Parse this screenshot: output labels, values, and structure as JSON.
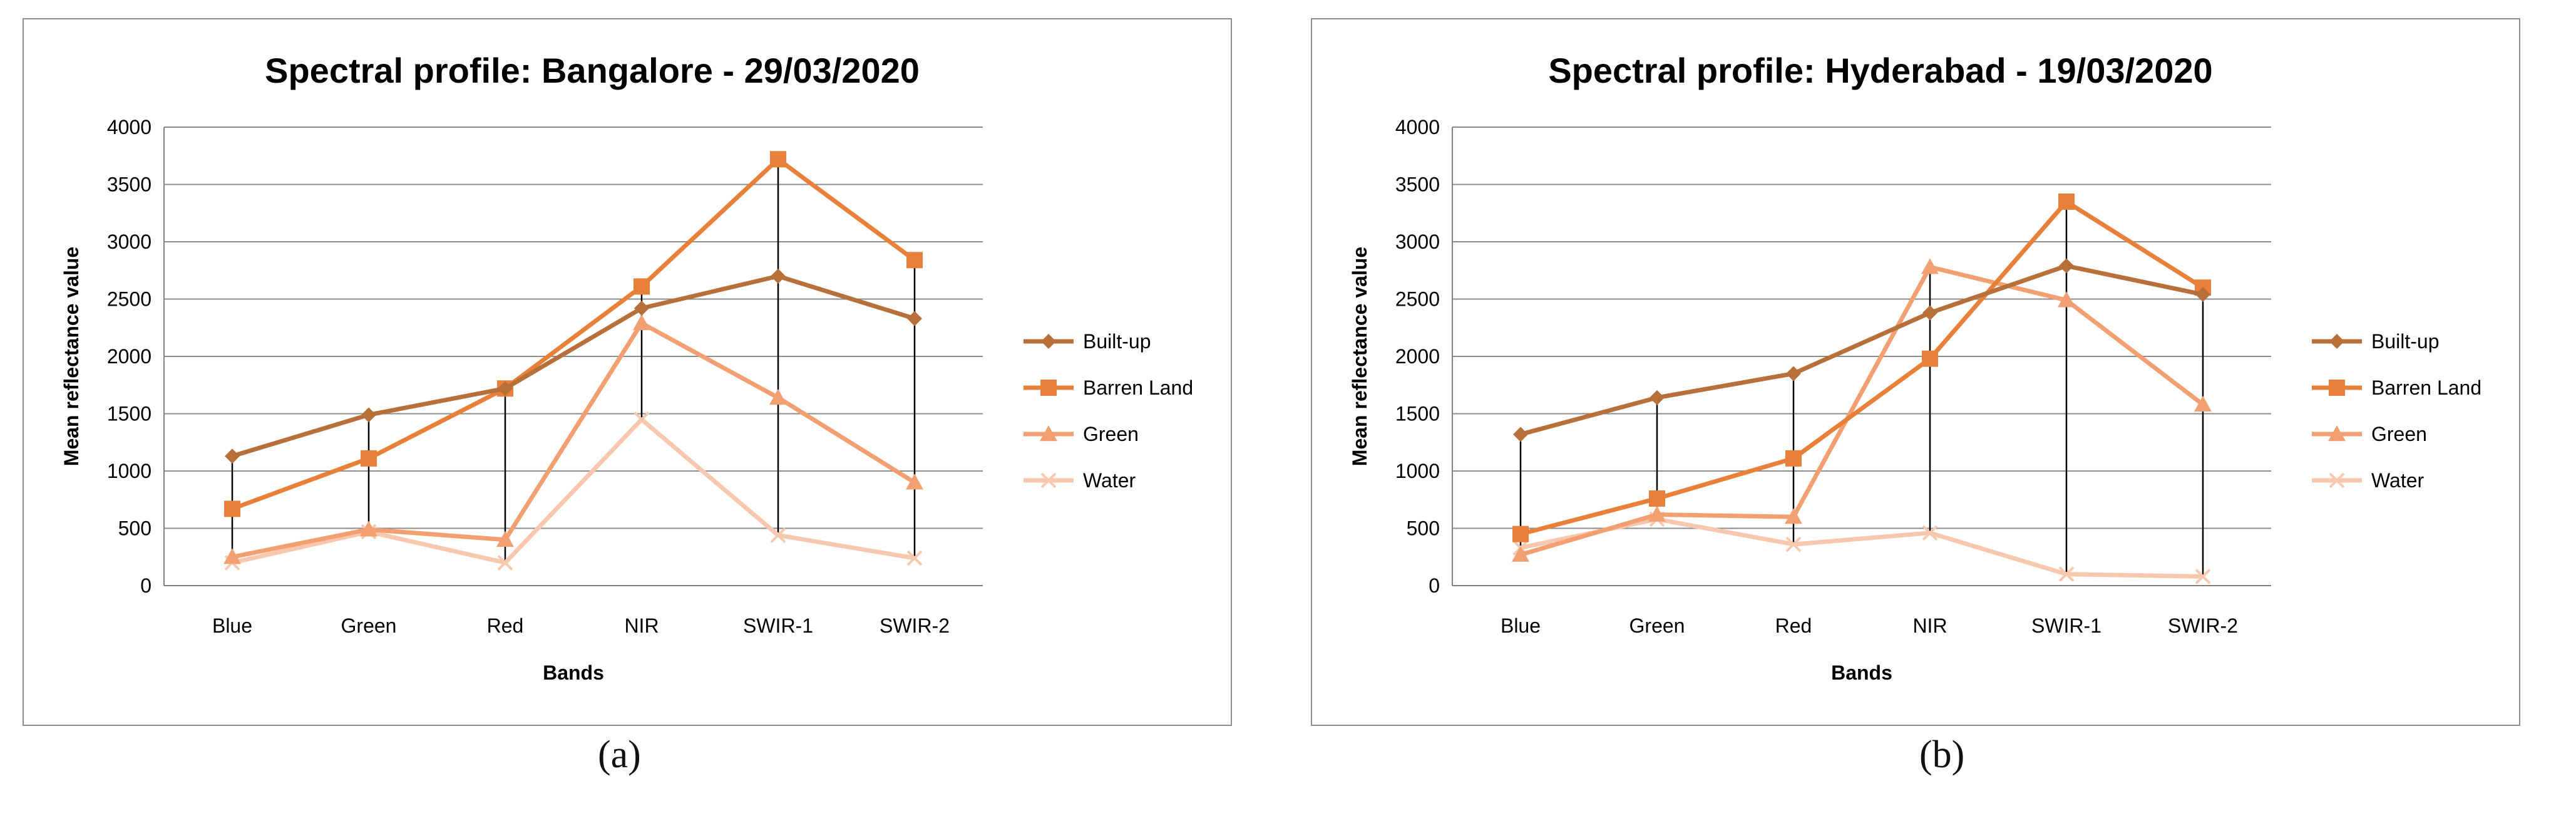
{
  "chart_data": [
    {
      "id": "a",
      "type": "line",
      "title": "Spectral profile: Bangalore - 29/03/2020",
      "xlabel": "Bands",
      "ylabel": "Mean reflectance value",
      "categories": [
        "Blue",
        "Green",
        "Red",
        "NIR",
        "SWIR-1",
        "SWIR-2"
      ],
      "ylim": [
        0,
        4000
      ],
      "yticks": [
        "0",
        "500",
        "1000",
        "1500",
        "2000",
        "2500",
        "3000",
        "3500",
        "4000"
      ],
      "grid": true,
      "legend": "right",
      "series": [
        {
          "name": "Built-up",
          "marker": "diamond",
          "color": "#b8703a",
          "values": [
            1130,
            1490,
            1720,
            2420,
            2700,
            2330
          ]
        },
        {
          "name": "Barren Land",
          "marker": "square",
          "color": "#e8803a",
          "values": [
            670,
            1110,
            1720,
            2610,
            3720,
            2840
          ]
        },
        {
          "name": "Green",
          "marker": "triangle",
          "color": "#f2a072",
          "values": [
            250,
            490,
            400,
            2290,
            1640,
            900
          ]
        },
        {
          "name": "Water",
          "marker": "x",
          "color": "#f7c8ad",
          "values": [
            200,
            470,
            200,
            1450,
            440,
            240
          ]
        }
      ],
      "caption": "(a)"
    },
    {
      "id": "b",
      "type": "line",
      "title": "Spectral profile: Hyderabad - 19/03/2020",
      "xlabel": "Bands",
      "ylabel": "Mean reflectance value",
      "categories": [
        "Blue",
        "Green",
        "Red",
        "NIR",
        "SWIR-1",
        "SWIR-2"
      ],
      "ylim": [
        0,
        4000
      ],
      "yticks": [
        "0",
        "500",
        "1000",
        "1500",
        "2000",
        "2500",
        "3000",
        "3500",
        "4000"
      ],
      "grid": true,
      "legend": "right",
      "series": [
        {
          "name": "Built-up",
          "marker": "diamond",
          "color": "#b8703a",
          "values": [
            1320,
            1640,
            1850,
            2380,
            2790,
            2540
          ]
        },
        {
          "name": "Barren Land",
          "marker": "square",
          "color": "#e8803a",
          "values": [
            450,
            760,
            1110,
            1980,
            3350,
            2600
          ]
        },
        {
          "name": "Green",
          "marker": "triangle",
          "color": "#f2a072",
          "values": [
            270,
            620,
            600,
            2780,
            2490,
            1580
          ]
        },
        {
          "name": "Water",
          "marker": "x",
          "color": "#f7c8ad",
          "values": [
            330,
            580,
            360,
            460,
            100,
            80
          ]
        }
      ],
      "caption": "(b)"
    }
  ]
}
